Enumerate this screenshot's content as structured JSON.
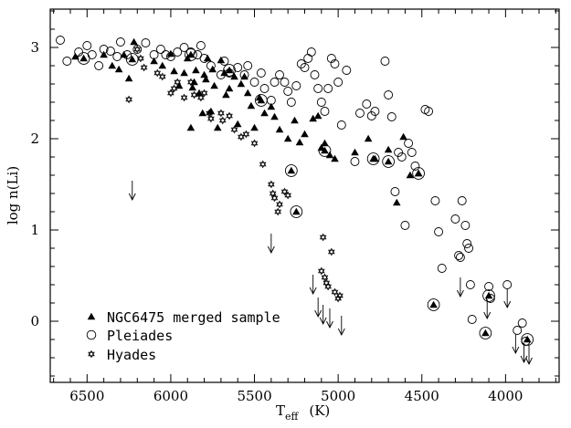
{
  "chart_data": {
    "type": "scatter",
    "xlabel_main": "T",
    "xlabel_sub": "eff",
    "xlabel_unit": "(K)",
    "ylabel": "log n(Li)",
    "xlim": [
      6720,
      3680
    ],
    "ylim": [
      -0.67,
      3.42
    ],
    "x_ticks": [
      6500,
      6000,
      5500,
      5000,
      4500,
      4000
    ],
    "y_ticks": [
      0,
      1,
      2,
      3
    ],
    "legend": [
      {
        "label": "NGC6475 merged sample",
        "marker": "triangle"
      },
      {
        "label": "Pleiades",
        "marker": "circle"
      },
      {
        "label": "Hyades",
        "marker": "star"
      }
    ],
    "series": [
      {
        "name": "NGC6475 merged sample",
        "marker": "triangle",
        "points": [
          [
            6570,
            2.9
          ],
          [
            6400,
            2.92
          ],
          [
            6350,
            2.8
          ],
          [
            6310,
            2.76
          ],
          [
            6280,
            2.92
          ],
          [
            6250,
            2.66
          ],
          [
            6220,
            3.06
          ],
          [
            6100,
            2.85
          ],
          [
            6050,
            2.8
          ],
          [
            6000,
            2.93
          ],
          [
            5980,
            2.74
          ],
          [
            5950,
            2.58
          ],
          [
            5920,
            2.72
          ],
          [
            5900,
            2.88
          ],
          [
            5880,
            2.12
          ],
          [
            5870,
            2.56
          ],
          [
            5860,
            2.62
          ],
          [
            5850,
            2.75
          ],
          [
            5830,
            2.5
          ],
          [
            5810,
            2.28
          ],
          [
            5800,
            2.7
          ],
          [
            5790,
            2.65
          ],
          [
            5780,
            2.88
          ],
          [
            5760,
            2.3
          ],
          [
            5750,
            2.76
          ],
          [
            5740,
            2.58
          ],
          [
            5720,
            2.12
          ],
          [
            5700,
            2.86
          ],
          [
            5680,
            2.72
          ],
          [
            5670,
            2.48
          ],
          [
            5650,
            2.55
          ],
          [
            5620,
            2.68
          ],
          [
            5600,
            2.16
          ],
          [
            5580,
            2.6
          ],
          [
            5560,
            2.68
          ],
          [
            5540,
            2.5
          ],
          [
            5520,
            2.36
          ],
          [
            5500,
            2.12
          ],
          [
            5470,
            2.45
          ],
          [
            5440,
            2.28
          ],
          [
            5400,
            2.35
          ],
          [
            5380,
            2.24
          ],
          [
            5350,
            2.1
          ],
          [
            5300,
            2.0
          ],
          [
            5260,
            2.2
          ],
          [
            5230,
            1.96
          ],
          [
            5200,
            2.05
          ],
          [
            5150,
            2.22
          ],
          [
            5120,
            2.25
          ],
          [
            5100,
            1.9
          ],
          [
            5080,
            1.95
          ],
          [
            5050,
            1.82
          ],
          [
            5020,
            1.78
          ],
          [
            4900,
            1.85
          ],
          [
            4820,
            2.0
          ],
          [
            4780,
            1.78
          ],
          [
            4700,
            1.88
          ],
          [
            4650,
            1.3
          ],
          [
            4610,
            2.02
          ],
          [
            4570,
            1.6
          ],
          [
            4520,
            1.62
          ]
        ]
      },
      {
        "name": "NGC6475 Pleiades overlap",
        "marker": "triangle-circled",
        "points": [
          [
            6520,
            2.88
          ],
          [
            6230,
            2.87
          ],
          [
            5880,
            2.92
          ],
          [
            5650,
            2.75
          ],
          [
            5460,
            2.42
          ],
          [
            5280,
            1.65
          ],
          [
            5250,
            1.2
          ],
          [
            5080,
            1.87
          ],
          [
            4790,
            1.78
          ],
          [
            4700,
            1.75
          ],
          [
            4520,
            1.62
          ],
          [
            4430,
            0.18
          ],
          [
            4120,
            -0.13
          ],
          [
            4100,
            0.28
          ],
          [
            3870,
            -0.2
          ]
        ]
      },
      {
        "name": "Pleiades",
        "marker": "circle",
        "points": [
          [
            6660,
            3.08
          ],
          [
            6620,
            2.85
          ],
          [
            6550,
            2.95
          ],
          [
            6500,
            3.02
          ],
          [
            6470,
            2.92
          ],
          [
            6430,
            2.8
          ],
          [
            6400,
            2.98
          ],
          [
            6360,
            2.96
          ],
          [
            6320,
            2.9
          ],
          [
            6300,
            3.06
          ],
          [
            6260,
            2.92
          ],
          [
            6200,
            2.98
          ],
          [
            6150,
            3.05
          ],
          [
            6100,
            2.92
          ],
          [
            6060,
            2.98
          ],
          [
            6030,
            2.92
          ],
          [
            6000,
            2.9
          ],
          [
            5960,
            2.95
          ],
          [
            5920,
            3.0
          ],
          [
            5880,
            2.95
          ],
          [
            5840,
            2.92
          ],
          [
            5820,
            3.02
          ],
          [
            5800,
            2.88
          ],
          [
            5760,
            2.8
          ],
          [
            5700,
            2.7
          ],
          [
            5680,
            2.85
          ],
          [
            5650,
            2.72
          ],
          [
            5600,
            2.78
          ],
          [
            5560,
            2.7
          ],
          [
            5540,
            2.8
          ],
          [
            5500,
            2.62
          ],
          [
            5460,
            2.72
          ],
          [
            5440,
            2.55
          ],
          [
            5400,
            2.42
          ],
          [
            5380,
            2.62
          ],
          [
            5350,
            2.7
          ],
          [
            5320,
            2.62
          ],
          [
            5300,
            2.52
          ],
          [
            5280,
            2.4
          ],
          [
            5250,
            2.58
          ],
          [
            5220,
            2.82
          ],
          [
            5200,
            2.78
          ],
          [
            5180,
            2.88
          ],
          [
            5160,
            2.95
          ],
          [
            5140,
            2.7
          ],
          [
            5120,
            2.55
          ],
          [
            5100,
            2.4
          ],
          [
            5080,
            2.3
          ],
          [
            5060,
            2.55
          ],
          [
            5040,
            2.88
          ],
          [
            5020,
            2.82
          ],
          [
            5000,
            2.62
          ],
          [
            4980,
            2.15
          ],
          [
            4950,
            2.75
          ],
          [
            4900,
            1.75
          ],
          [
            4870,
            2.28
          ],
          [
            4830,
            2.38
          ],
          [
            4800,
            2.25
          ],
          [
            4780,
            2.3
          ],
          [
            4720,
            2.85
          ],
          [
            4700,
            2.48
          ],
          [
            4680,
            2.24
          ],
          [
            4660,
            1.42
          ],
          [
            4640,
            1.85
          ],
          [
            4620,
            1.8
          ],
          [
            4600,
            1.05
          ],
          [
            4580,
            1.95
          ],
          [
            4560,
            1.85
          ],
          [
            4540,
            1.7
          ],
          [
            4480,
            2.32
          ],
          [
            4460,
            2.3
          ],
          [
            4420,
            1.32
          ],
          [
            4400,
            0.98
          ],
          [
            4380,
            0.58
          ],
          [
            4300,
            1.12
          ],
          [
            4280,
            0.72
          ],
          [
            4270,
            0.7
          ],
          [
            4260,
            1.32
          ],
          [
            4240,
            1.05
          ],
          [
            4230,
            0.85
          ],
          [
            4220,
            0.8
          ],
          [
            4210,
            0.4
          ],
          [
            4200,
            0.02
          ],
          [
            4100,
            0.38
          ],
          [
            4090,
            0.25
          ],
          [
            3990,
            0.4
          ],
          [
            3930,
            -0.1
          ],
          [
            3900,
            -0.02
          ],
          [
            3880,
            -0.22
          ]
        ]
      },
      {
        "name": "Hyades",
        "marker": "star",
        "points": [
          [
            6250,
            2.43
          ],
          [
            6200,
            2.98
          ],
          [
            6180,
            2.88
          ],
          [
            6160,
            2.78
          ],
          [
            6080,
            2.72
          ],
          [
            6050,
            2.68
          ],
          [
            6000,
            2.5
          ],
          [
            5980,
            2.55
          ],
          [
            5960,
            2.62
          ],
          [
            5920,
            2.45
          ],
          [
            5880,
            2.62
          ],
          [
            5860,
            2.48
          ],
          [
            5820,
            2.45
          ],
          [
            5800,
            2.5
          ],
          [
            5770,
            2.28
          ],
          [
            5760,
            2.22
          ],
          [
            5700,
            2.28
          ],
          [
            5690,
            2.2
          ],
          [
            5650,
            2.25
          ],
          [
            5620,
            2.1
          ],
          [
            5580,
            2.02
          ],
          [
            5550,
            2.05
          ],
          [
            5500,
            1.95
          ],
          [
            5450,
            1.72
          ],
          [
            5400,
            1.5
          ],
          [
            5390,
            1.4
          ],
          [
            5380,
            1.35
          ],
          [
            5360,
            1.2
          ],
          [
            5350,
            1.28
          ],
          [
            5320,
            1.42
          ],
          [
            5300,
            1.38
          ],
          [
            5090,
            0.92
          ],
          [
            5040,
            0.76
          ],
          [
            5100,
            0.55
          ],
          [
            5080,
            0.48
          ],
          [
            5070,
            0.42
          ],
          [
            5060,
            0.38
          ],
          [
            5020,
            0.32
          ],
          [
            5000,
            0.25
          ],
          [
            4990,
            0.28
          ]
        ]
      },
      {
        "name": "Upper limits",
        "marker": "upper-limit",
        "points": [
          [
            6230,
            1.58,
            "star"
          ],
          [
            5400,
            1.0,
            "star"
          ],
          [
            5150,
            0.55,
            "star"
          ],
          [
            5120,
            0.3,
            "star"
          ],
          [
            5090,
            0.22,
            "star"
          ],
          [
            5050,
            0.18,
            "star"
          ],
          [
            4980,
            0.1,
            "star"
          ],
          [
            4270,
            0.52,
            "circle"
          ],
          [
            4110,
            0.28,
            "circle"
          ],
          [
            3990,
            0.4,
            "circle"
          ],
          [
            3940,
            -0.1,
            "circle"
          ],
          [
            3890,
            -0.2,
            "circle"
          ],
          [
            3860,
            -0.22,
            "circle"
          ]
        ]
      }
    ]
  }
}
